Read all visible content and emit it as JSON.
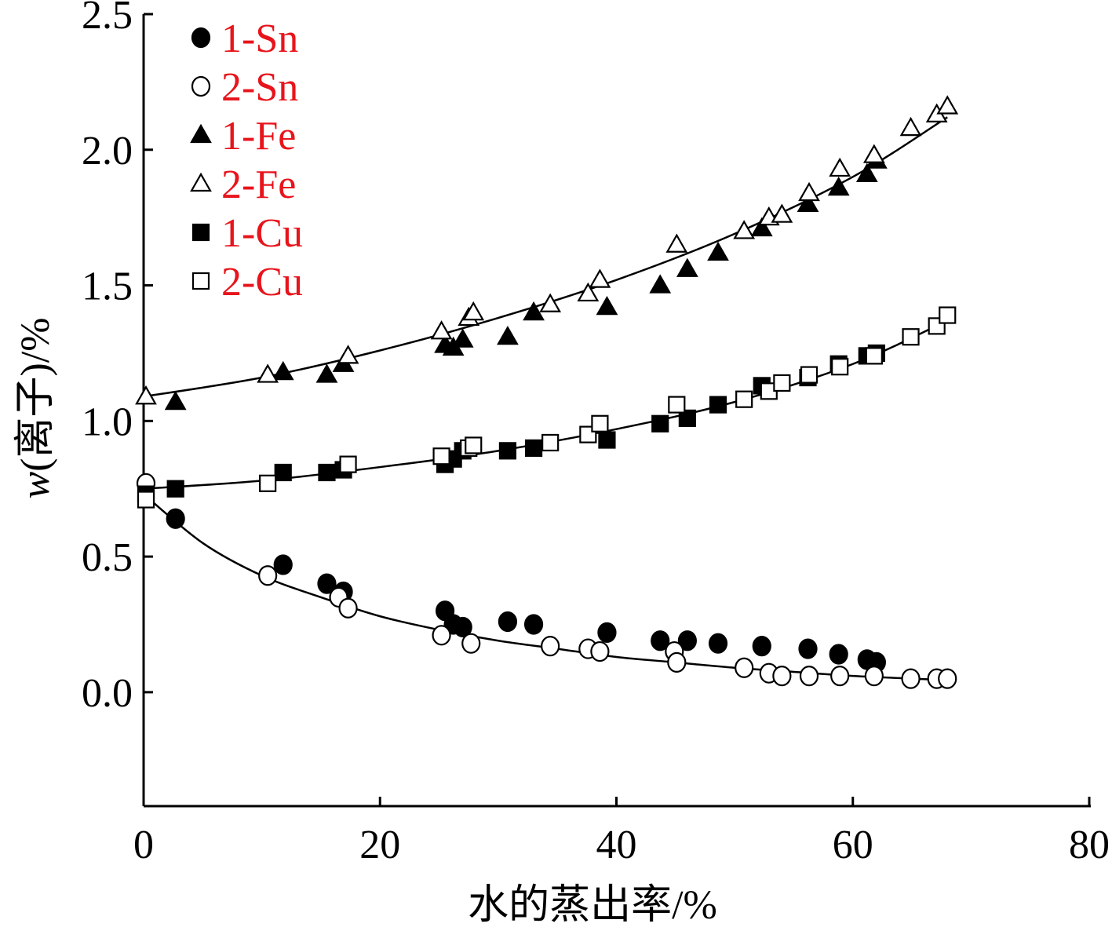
{
  "chart_data": {
    "type": "scatter",
    "xlabel": "水的蒸出率/%",
    "ylabel_italic": "w",
    "ylabel_rest": "(离子)/%",
    "xlim": [
      0,
      80
    ],
    "ylim": [
      -0.42,
      2.5
    ],
    "x_ticks": [
      0,
      20,
      40,
      60,
      80
    ],
    "y_ticks": [
      0.0,
      0.5,
      1.0,
      1.5,
      2.0,
      2.5
    ],
    "x_tick_labels": [
      "0",
      "20",
      "40",
      "60",
      "80"
    ],
    "y_tick_labels": [
      "0.0",
      "0.5",
      "1.0",
      "1.5",
      "2.0",
      "2.5"
    ],
    "grid": false,
    "legend_position": "top-left",
    "series": [
      {
        "name": "1-Sn",
        "marker": "circle",
        "filled": true,
        "points": [
          [
            2.7,
            0.64
          ],
          [
            11.8,
            0.47
          ],
          [
            15.5,
            0.4
          ],
          [
            16.9,
            0.37
          ],
          [
            25.5,
            0.3
          ],
          [
            26.2,
            0.25
          ],
          [
            27,
            0.24
          ],
          [
            30.8,
            0.26
          ],
          [
            33,
            0.25
          ],
          [
            39.2,
            0.22
          ],
          [
            43.7,
            0.19
          ],
          [
            46,
            0.19
          ],
          [
            48.6,
            0.18
          ],
          [
            52.3,
            0.17
          ],
          [
            56.2,
            0.16
          ],
          [
            58.8,
            0.14
          ],
          [
            61.2,
            0.12
          ],
          [
            62,
            0.11
          ]
        ]
      },
      {
        "name": "2-Sn",
        "marker": "circle",
        "filled": false,
        "points": [
          [
            0.2,
            0.77
          ],
          [
            10.5,
            0.43
          ],
          [
            16.5,
            0.35
          ],
          [
            17.3,
            0.31
          ],
          [
            25.2,
            0.21
          ],
          [
            27.7,
            0.18
          ],
          [
            34.4,
            0.17
          ],
          [
            37.6,
            0.16
          ],
          [
            38.6,
            0.15
          ],
          [
            44.9,
            0.15
          ],
          [
            45.1,
            0.11
          ],
          [
            50.8,
            0.09
          ],
          [
            52.9,
            0.07
          ],
          [
            54,
            0.06
          ],
          [
            56.3,
            0.06
          ],
          [
            58.9,
            0.06
          ],
          [
            61.8,
            0.06
          ],
          [
            64.9,
            0.05
          ],
          [
            67.1,
            0.05
          ],
          [
            68,
            0.05
          ]
        ]
      },
      {
        "name": "1-Fe",
        "marker": "triangle",
        "filled": true,
        "points": [
          [
            2.7,
            1.07
          ],
          [
            11.8,
            1.18
          ],
          [
            15.5,
            1.17
          ],
          [
            16.9,
            1.21
          ],
          [
            25.5,
            1.28
          ],
          [
            26.2,
            1.27
          ],
          [
            27,
            1.3
          ],
          [
            30.8,
            1.31
          ],
          [
            33,
            1.4
          ],
          [
            39.2,
            1.42
          ],
          [
            43.7,
            1.5
          ],
          [
            46,
            1.56
          ],
          [
            48.6,
            1.62
          ],
          [
            52.3,
            1.71
          ],
          [
            56.2,
            1.8
          ],
          [
            58.8,
            1.86
          ],
          [
            61.2,
            1.91
          ],
          [
            62,
            1.96
          ]
        ]
      },
      {
        "name": "2-Fe",
        "marker": "triangle",
        "filled": false,
        "points": [
          [
            0.2,
            1.09
          ],
          [
            10.5,
            1.17
          ],
          [
            17.3,
            1.24
          ],
          [
            25.2,
            1.33
          ],
          [
            27.5,
            1.38
          ],
          [
            27.9,
            1.4
          ],
          [
            34.4,
            1.43
          ],
          [
            37.6,
            1.47
          ],
          [
            38.6,
            1.52
          ],
          [
            45.1,
            1.65
          ],
          [
            50.8,
            1.7
          ],
          [
            52.9,
            1.75
          ],
          [
            54,
            1.76
          ],
          [
            56.3,
            1.84
          ],
          [
            58.9,
            1.93
          ],
          [
            61.8,
            1.98
          ],
          [
            64.9,
            2.08
          ],
          [
            67.1,
            2.13
          ],
          [
            68,
            2.16
          ]
        ]
      },
      {
        "name": "1-Cu",
        "marker": "square",
        "filled": true,
        "points": [
          [
            0.2,
            0.73
          ],
          [
            2.7,
            0.75
          ],
          [
            11.8,
            0.81
          ],
          [
            15.5,
            0.81
          ],
          [
            16.9,
            0.82
          ],
          [
            25.5,
            0.84
          ],
          [
            26.2,
            0.86
          ],
          [
            27,
            0.89
          ],
          [
            30.8,
            0.89
          ],
          [
            33,
            0.9
          ],
          [
            39.2,
            0.93
          ],
          [
            43.7,
            0.99
          ],
          [
            46,
            1.01
          ],
          [
            48.6,
            1.06
          ],
          [
            52.3,
            1.13
          ],
          [
            56.2,
            1.16
          ],
          [
            58.8,
            1.21
          ],
          [
            61.2,
            1.24
          ],
          [
            62,
            1.25
          ]
        ]
      },
      {
        "name": "2-Cu",
        "marker": "square",
        "filled": false,
        "points": [
          [
            0.2,
            0.71
          ],
          [
            10.5,
            0.77
          ],
          [
            17.3,
            0.84
          ],
          [
            25.2,
            0.87
          ],
          [
            27.5,
            0.9
          ],
          [
            27.9,
            0.91
          ],
          [
            34.4,
            0.92
          ],
          [
            37.6,
            0.95
          ],
          [
            38.6,
            0.99
          ],
          [
            45.1,
            1.06
          ],
          [
            50.8,
            1.08
          ],
          [
            52.9,
            1.11
          ],
          [
            54,
            1.14
          ],
          [
            56.3,
            1.17
          ],
          [
            58.9,
            1.2
          ],
          [
            61.8,
            1.24
          ],
          [
            64.9,
            1.31
          ],
          [
            67.1,
            1.35
          ],
          [
            68,
            1.39
          ]
        ]
      }
    ],
    "fit_lines": [
      {
        "x": [
          0,
          5,
          10,
          15,
          20,
          25,
          30,
          35,
          40,
          45,
          50,
          55,
          60,
          65,
          68
        ],
        "y": [
          0.73,
          0.55,
          0.43,
          0.35,
          0.28,
          0.23,
          0.19,
          0.16,
          0.13,
          0.11,
          0.09,
          0.075,
          0.06,
          0.05,
          0.045
        ]
      },
      {
        "x": [
          0,
          10,
          20,
          30,
          40,
          50,
          60,
          68
        ],
        "y": [
          1.09,
          1.16,
          1.26,
          1.38,
          1.52,
          1.69,
          1.9,
          2.12
        ]
      },
      {
        "x": [
          0,
          10,
          20,
          30,
          40,
          50,
          60,
          68
        ],
        "y": [
          0.75,
          0.78,
          0.83,
          0.89,
          0.97,
          1.07,
          1.21,
          1.37
        ]
      }
    ]
  }
}
